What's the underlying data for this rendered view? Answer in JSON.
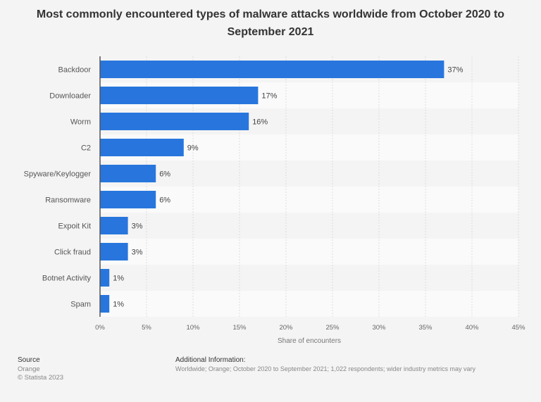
{
  "chart_data": {
    "type": "bar",
    "orientation": "horizontal",
    "title": "Most commonly encountered types of malware attacks worldwide from October 2020 to September 2021",
    "categories": [
      "Backdoor",
      "Downloader",
      "Worm",
      "C2",
      "Spyware/Keylogger",
      "Ransomware",
      "Expoit Kit",
      "Click fraud",
      "Botnet Activity",
      "Spam"
    ],
    "values": [
      37,
      17,
      16,
      9,
      6,
      6,
      3,
      3,
      1,
      1
    ],
    "data_labels": [
      "37%",
      "17%",
      "16%",
      "9%",
      "6%",
      "6%",
      "3%",
      "3%",
      "1%",
      "1%"
    ],
    "xlabel": "Share of encounters",
    "ylabel": "",
    "xlim": [
      0,
      45
    ],
    "xticks": [
      "0%",
      "5%",
      "10%",
      "15%",
      "20%",
      "25%",
      "30%",
      "35%",
      "40%",
      "45%"
    ],
    "grid": true,
    "bar_color": "#2876dd"
  },
  "footer": {
    "source_heading": "Source",
    "source": "Orange",
    "copyright": "© Statista 2023",
    "additional_heading": "Additional Information:",
    "additional": "Worldwide; Orange; October 2020 to September 2021; 1,022 respondents; wider industry metrics may vary"
  }
}
